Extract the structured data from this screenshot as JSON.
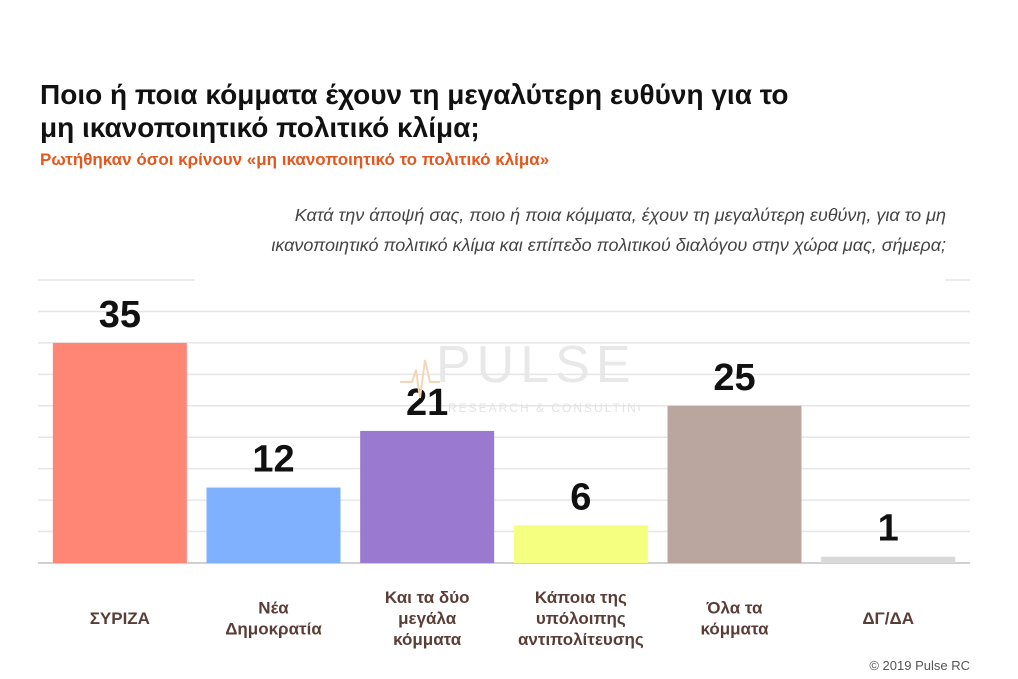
{
  "header": {
    "title": "Ποιο ή ποια κόμματα έχουν τη μεγαλύτερη ευθύνη για το μη ικανοποιητικό πολιτικό κλίμα;",
    "subtitle": "Ρωτήθηκαν όσοι κρίνουν «μη ικανοποιητικό το πολιτικό κλίμα»",
    "question": "Κατά την άποψή σας, ποιο ή ποια κόμματα, έχουν τη μεγαλύτερη ευθύνη, για το μη ικανοποιητικό πολιτικό κλίμα και επίπεδο πολιτικού διαλόγου στην χώρα μας, σήμερα;"
  },
  "watermark": {
    "brand": "PULSE",
    "tagline": "RESEARCH & CONSULTING"
  },
  "footer": {
    "copyright": "© 2019 Pulse RC"
  },
  "chart_data": {
    "type": "bar",
    "categories": [
      "ΣΥΡΙΖΑ",
      "Νέα Δημοκρατία",
      "Και τα δύο μεγάλα κόμματα",
      "Κάποια της υπόλοιπης αντιπολίτευσης",
      "Όλα τα κόμματα",
      "ΔΓ/ΔΑ"
    ],
    "category_lines": [
      [
        "ΣΥΡΙΖΑ"
      ],
      [
        "Νέα",
        "Δημοκρατία"
      ],
      [
        "Και τα δύο",
        "μεγάλα",
        "κόμματα"
      ],
      [
        "Κάποια της",
        "υπόλοιπης",
        "αντιπολίτευσης"
      ],
      [
        "Όλα τα",
        "κόμματα"
      ],
      [
        "ΔΓ/ΔΑ"
      ]
    ],
    "values": [
      35,
      12,
      21,
      6,
      25,
      1
    ],
    "colors": [
      "#ff8675",
      "#80b1ff",
      "#9a7ad0",
      "#f5ff80",
      "#bba69f",
      "#d9d9d9"
    ],
    "ylim": [
      0,
      45
    ],
    "grid": true,
    "legend": "none"
  }
}
